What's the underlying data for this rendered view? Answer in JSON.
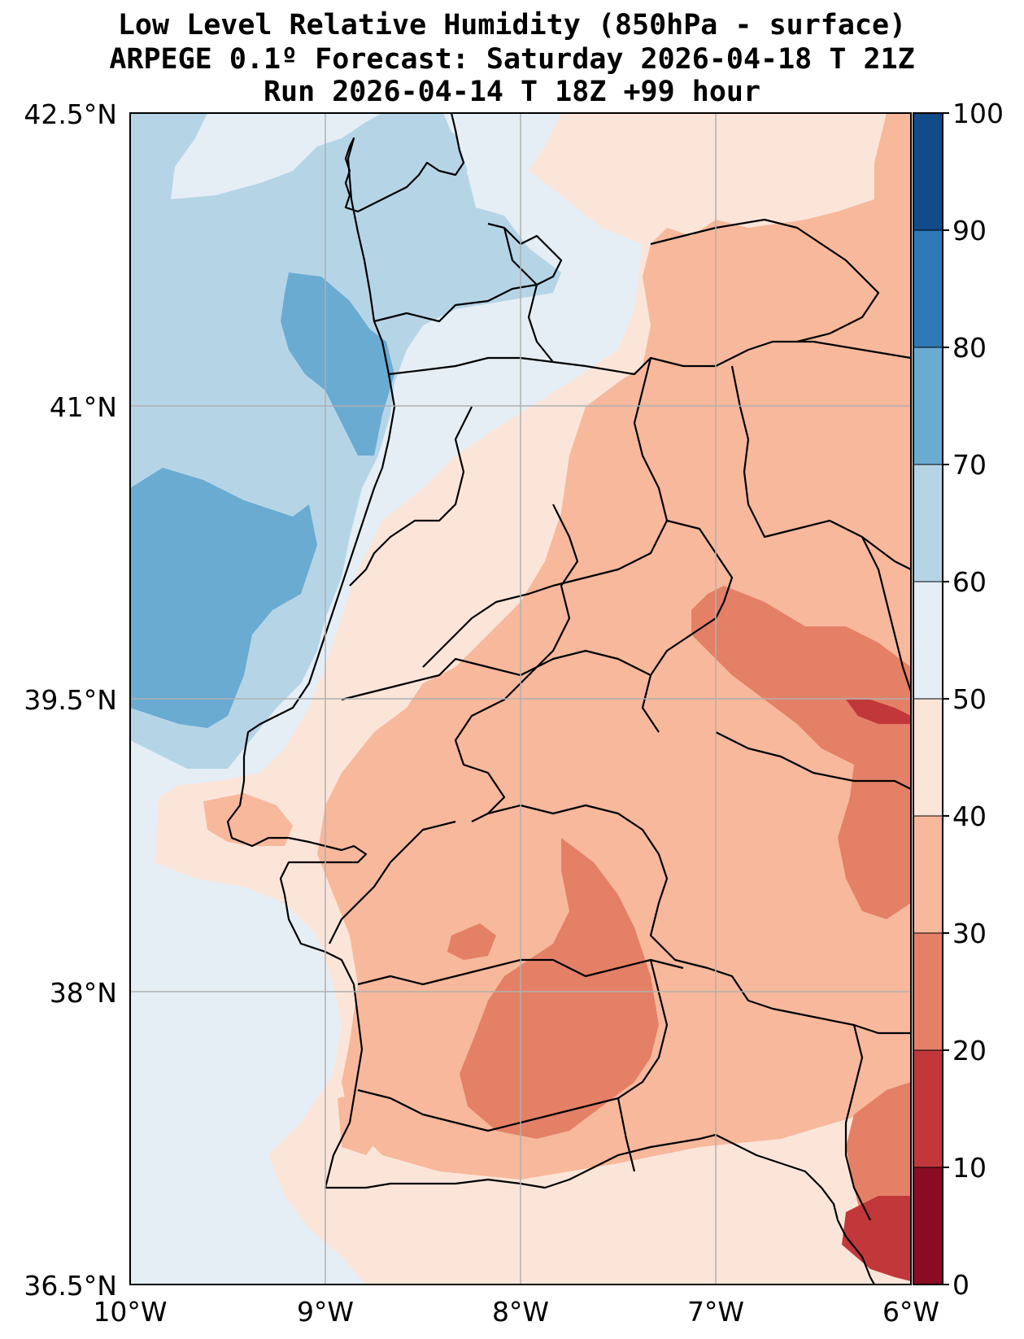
{
  "title": {
    "line1": "Low Level Relative Humidity (850hPa - surface)",
    "line2": "ARPEGE 0.1º Forecast: Saturday 2026-04-18 T 21Z",
    "line3": "Run 2026-04-14 T 18Z +99 hour"
  },
  "axes": {
    "lat_labels": [
      "42.5°N",
      "41°N",
      "39.5°N",
      "38°N",
      "36.5°N"
    ],
    "lon_labels": [
      "10°W",
      "9°W",
      "8°W",
      "7°W",
      "6°W"
    ]
  },
  "colorbar": {
    "levels": [
      0,
      10,
      20,
      30,
      40,
      50,
      60,
      70,
      80,
      90,
      100
    ],
    "tick_labels": [
      "0",
      "10",
      "20",
      "30",
      "40",
      "50",
      "60",
      "70",
      "80",
      "90",
      "100"
    ],
    "colors": [
      "#8b0b24",
      "#c1373a",
      "#e48066",
      "#f7b89c",
      "#fbe5d9",
      "#e5eef5",
      "#b5d5e7",
      "#6aabd2",
      "#2e78b6",
      "#124b8a"
    ]
  },
  "map_colors": {
    "rh_60_70": "#b5d5e7",
    "rh_70_80": "#6aabd2",
    "rh_50_60": "#e5eef5",
    "rh_40_50": "#fbe5d9",
    "rh_30_40": "#f7b89c",
    "rh_20_30": "#e48066",
    "rh_10_20": "#c1373a",
    "coastline": "#000000",
    "gridline": "#b0b0b0"
  }
}
